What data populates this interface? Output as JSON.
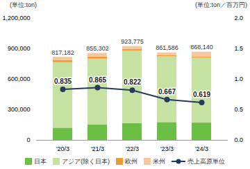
{
  "chart_data": {
    "type": "bar",
    "stacked": true,
    "categories": [
      "'20/3",
      "'21/3",
      "'22/3",
      "'23/3",
      "'24/3"
    ],
    "series": [
      {
        "name": "日本",
        "color": "#6cbf45",
        "values": [
          120000,
          150000,
          165000,
          175000,
          170000
        ]
      },
      {
        "name": "アジア(除く日本)",
        "color": "#c6e2a2",
        "values": [
          645000,
          650000,
          715000,
          650000,
          640000
        ]
      },
      {
        "name": "欧州",
        "color": "#ee9a35",
        "values": [
          22000,
          20000,
          13000,
          7000,
          8000
        ]
      },
      {
        "name": "米州",
        "color": "#f8c79c",
        "values": [
          30182,
          35302,
          30775,
          29586,
          50140
        ]
      },
      {
        "name": "売上高原単位",
        "type": "line",
        "axis": "y2",
        "color": "#243a5e",
        "marker": "circle",
        "data_labels": true,
        "values": [
          0.835,
          0.865,
          0.822,
          0.667,
          0.619
        ]
      }
    ],
    "totals": {
      "values": [
        817182,
        855302,
        923775,
        861586,
        868140
      ],
      "value_labels": [
        "817,182",
        "855,302",
        "923,775",
        "861,586",
        "868,140"
      ]
    },
    "ylim": [
      0,
      1200000
    ],
    "yticks": [
      0,
      {
        "value": 300000,
        "label": "300,000"
      },
      {
        "value": 600000,
        "label": "600,000"
      },
      {
        "value": 900000,
        "label": "900,000"
      },
      {
        "value": 1200000,
        "label": "1,200,000"
      }
    ],
    "y2lim": [
      0,
      2
    ],
    "y2ticks": [
      {
        "value": 0,
        "label": "0.0"
      },
      {
        "value": 0.5,
        "label": "0.5"
      },
      {
        "value": 1,
        "label": "1.0"
      },
      {
        "value": 1.5,
        "label": "1.5"
      },
      {
        "value": 2,
        "label": "2.0"
      }
    ],
    "y_label": "(単位:ton)",
    "y2_label": "(単位:ton／百万円)",
    "grid": false,
    "legend": "bottom"
  }
}
